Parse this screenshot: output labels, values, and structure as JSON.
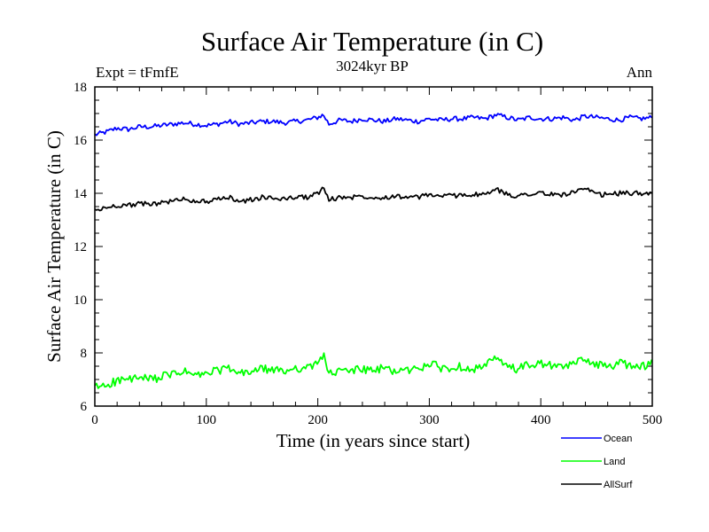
{
  "chart_data": {
    "type": "line",
    "title": "Surface Air Temperature (in C)",
    "subtitle": "3024kyr BP",
    "left_label": "Expt = tFmfE",
    "right_label": "Ann",
    "xlabel": "Time (in years since start)",
    "ylabel": "Surface Air Temperature (in C)",
    "xlim": [
      0,
      500
    ],
    "ylim": [
      6,
      18
    ],
    "xticks": [
      0,
      100,
      200,
      300,
      400,
      500
    ],
    "yticks": [
      6,
      8,
      10,
      12,
      14,
      16,
      18
    ],
    "grid": false,
    "legend_position": "bottom-right",
    "x": [
      0,
      10,
      20,
      30,
      40,
      50,
      60,
      70,
      80,
      90,
      100,
      110,
      120,
      130,
      140,
      150,
      160,
      170,
      180,
      190,
      200,
      205,
      210,
      220,
      230,
      240,
      250,
      260,
      270,
      280,
      290,
      300,
      310,
      320,
      330,
      340,
      350,
      360,
      370,
      380,
      390,
      400,
      410,
      420,
      430,
      440,
      450,
      460,
      470,
      480,
      490,
      500
    ],
    "series": [
      {
        "name": "Ocean",
        "color": "#0000ff",
        "values": [
          16.2,
          16.3,
          16.45,
          16.4,
          16.5,
          16.5,
          16.55,
          16.6,
          16.65,
          16.6,
          16.55,
          16.6,
          16.7,
          16.6,
          16.65,
          16.7,
          16.7,
          16.65,
          16.7,
          16.75,
          16.85,
          16.95,
          16.6,
          16.75,
          16.7,
          16.8,
          16.75,
          16.7,
          16.8,
          16.75,
          16.7,
          16.8,
          16.75,
          16.8,
          16.8,
          16.85,
          16.8,
          16.95,
          16.85,
          16.75,
          16.85,
          16.8,
          16.8,
          16.85,
          16.75,
          16.9,
          16.85,
          16.8,
          16.75,
          16.85,
          16.8,
          16.85
        ]
      },
      {
        "name": "Land",
        "color": "#00ff00",
        "values": [
          6.7,
          6.8,
          6.95,
          7.0,
          7.05,
          7.0,
          7.1,
          7.2,
          7.3,
          7.15,
          7.2,
          7.35,
          7.4,
          7.2,
          7.3,
          7.4,
          7.35,
          7.3,
          7.45,
          7.4,
          7.6,
          8.0,
          7.2,
          7.3,
          7.35,
          7.4,
          7.3,
          7.45,
          7.3,
          7.35,
          7.4,
          7.6,
          7.45,
          7.4,
          7.5,
          7.4,
          7.5,
          7.8,
          7.45,
          7.4,
          7.55,
          7.6,
          7.5,
          7.45,
          7.6,
          7.8,
          7.55,
          7.5,
          7.6,
          7.55,
          7.5,
          7.6
        ]
      },
      {
        "name": "AllSurf",
        "color": "#000000",
        "values": [
          13.35,
          13.45,
          13.55,
          13.55,
          13.6,
          13.6,
          13.65,
          13.7,
          13.8,
          13.7,
          13.7,
          13.75,
          13.85,
          13.7,
          13.75,
          13.85,
          13.8,
          13.8,
          13.85,
          13.85,
          14.0,
          14.2,
          13.75,
          13.85,
          13.85,
          13.9,
          13.85,
          13.85,
          13.9,
          13.85,
          13.85,
          13.95,
          13.9,
          13.9,
          13.95,
          13.95,
          13.95,
          14.15,
          13.95,
          13.9,
          14.0,
          14.0,
          13.95,
          13.95,
          14.05,
          14.15,
          13.95,
          13.95,
          14.0,
          14.0,
          14.0,
          14.05
        ]
      }
    ]
  }
}
